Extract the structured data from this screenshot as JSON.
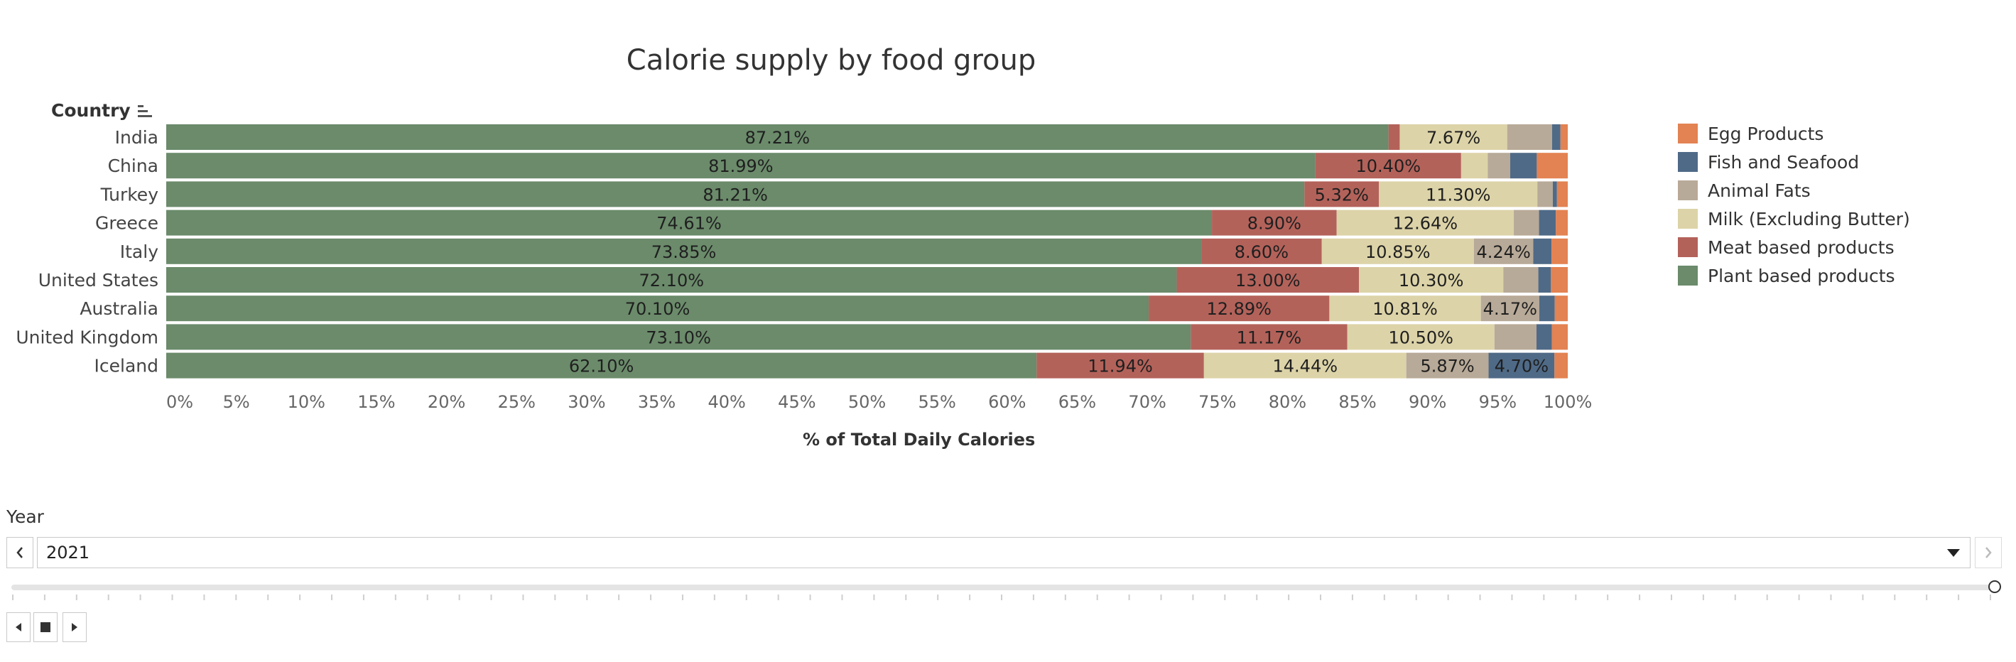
{
  "chart_data": {
    "type": "bar",
    "orientation": "horizontal",
    "stacked": true,
    "title": "Calorie supply by food group",
    "ylabel": "Country",
    "xlabel": "% of Total Daily Calories",
    "xlim": [
      0,
      100
    ],
    "grid": false,
    "legend_position": "right",
    "x_ticks": [
      "0%",
      "5%",
      "10%",
      "15%",
      "20%",
      "25%",
      "30%",
      "35%",
      "40%",
      "45%",
      "50%",
      "55%",
      "60%",
      "65%",
      "70%",
      "75%",
      "80%",
      "85%",
      "90%",
      "95%",
      "100%"
    ],
    "categories": [
      "India",
      "China",
      "Turkey",
      "Greece",
      "Italy",
      "United States",
      "Australia",
      "United Kingdom",
      "Iceland"
    ],
    "series": [
      {
        "name": "Plant based products",
        "color": "#6b8b6b",
        "values": [
          87.21,
          81.99,
          81.21,
          74.61,
          73.85,
          72.1,
          70.1,
          73.1,
          62.1
        ]
      },
      {
        "name": "Meat based products",
        "color": "#b3625a",
        "values": [
          0.8,
          10.4,
          5.32,
          8.9,
          8.6,
          13.0,
          12.89,
          11.17,
          11.94
        ]
      },
      {
        "name": "Milk (Excluding Butter)",
        "color": "#dcd3a8",
        "values": [
          7.67,
          1.9,
          11.3,
          12.64,
          10.85,
          10.3,
          10.81,
          10.5,
          14.44
        ]
      },
      {
        "name": "Animal Fats",
        "color": "#b8aa98",
        "values": [
          3.2,
          1.6,
          1.1,
          1.8,
          4.24,
          2.5,
          4.17,
          3.0,
          5.87
        ]
      },
      {
        "name": "Fish and Seafood",
        "color": "#4f6a87",
        "values": [
          0.6,
          1.9,
          0.3,
          1.2,
          1.3,
          0.9,
          1.1,
          1.1,
          4.7
        ]
      },
      {
        "name": "Egg Products",
        "color": "#e38252",
        "values": [
          0.52,
          2.21,
          0.77,
          0.85,
          1.16,
          1.2,
          0.93,
          1.13,
          0.95
        ]
      }
    ],
    "data_labels": [
      [
        "87.21%",
        "",
        "7.67%",
        "",
        "",
        ""
      ],
      [
        "81.99%",
        "10.40%",
        "",
        "",
        "",
        ""
      ],
      [
        "81.21%",
        "5.32%",
        "11.30%",
        "",
        "",
        ""
      ],
      [
        "74.61%",
        "8.90%",
        "12.64%",
        "",
        "",
        ""
      ],
      [
        "73.85%",
        "8.60%",
        "10.85%",
        "4.24%",
        "",
        ""
      ],
      [
        "72.10%",
        "13.00%",
        "10.30%",
        "",
        "",
        ""
      ],
      [
        "70.10%",
        "12.89%",
        "10.81%",
        "4.17%",
        "",
        ""
      ],
      [
        "73.10%",
        "11.17%",
        "10.50%",
        "",
        "",
        ""
      ],
      [
        "62.10%",
        "11.94%",
        "14.44%",
        "5.87%",
        "4.70%",
        ""
      ]
    ],
    "legend_order": [
      "Egg Products",
      "Fish and Seafood",
      "Animal Fats",
      "Milk (Excluding Butter)",
      "Meat based products",
      "Plant based products"
    ]
  },
  "filter": {
    "label": "Year",
    "value": "2021",
    "slider_fraction": 1.0
  },
  "icons": {
    "prev": "chevron-left-icon",
    "next": "chevron-right-icon",
    "dropdown": "caret-down-icon",
    "sort": "sort-descending-icon",
    "step_back": "step-back-icon",
    "stop": "stop-icon",
    "play": "play-icon"
  }
}
